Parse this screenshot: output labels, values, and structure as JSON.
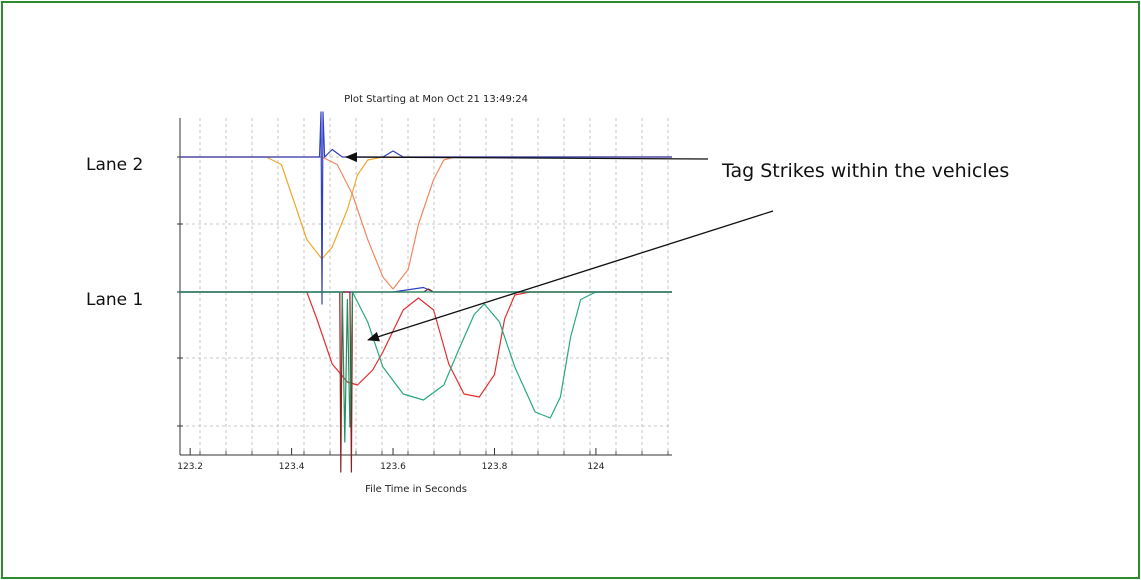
{
  "chart_data": {
    "type": "line",
    "title": "Plot Starting at Mon Oct 21 13:49:24",
    "xlabel": "File Time in Seconds",
    "ylabel": "",
    "x_tick_labels": [
      "123.2",
      "123.4",
      "123.6",
      "123.8",
      "124"
    ],
    "x_ticks": [
      123.2,
      123.4,
      123.6,
      123.8,
      124.0
    ],
    "xlim": [
      123.18,
      124.15
    ],
    "grid": true,
    "lanes": [
      {
        "label": "Lane 2",
        "baseline": 2
      },
      {
        "label": "Lane 1",
        "baseline": 1
      }
    ],
    "annotation": {
      "text": "Tag Strikes within the vehicles"
    },
    "series": [
      {
        "color": "#f0a830",
        "lane": 2,
        "points": [
          [
            123.18,
            0
          ],
          [
            123.35,
            0
          ],
          [
            123.38,
            -0.05
          ],
          [
            123.4,
            -0.25
          ],
          [
            123.43,
            -0.55
          ],
          [
            123.46,
            -0.68
          ],
          [
            123.48,
            -0.6
          ],
          [
            123.51,
            -0.35
          ],
          [
            123.53,
            -0.12
          ],
          [
            123.55,
            -0.02
          ],
          [
            123.58,
            0
          ],
          [
            124.15,
            0
          ]
        ]
      },
      {
        "color": "#f08860",
        "lane": 2,
        "points": [
          [
            123.18,
            0
          ],
          [
            123.46,
            0
          ],
          [
            123.49,
            -0.05
          ],
          [
            123.52,
            -0.25
          ],
          [
            123.55,
            -0.55
          ],
          [
            123.58,
            -0.8
          ],
          [
            123.6,
            -0.88
          ],
          [
            123.63,
            -0.75
          ],
          [
            123.65,
            -0.45
          ],
          [
            123.68,
            -0.15
          ],
          [
            123.7,
            -0.02
          ],
          [
            123.72,
            0
          ],
          [
            124.15,
            0
          ]
        ]
      },
      {
        "color": "#e03030",
        "lane": 1,
        "points": [
          [
            123.18,
            0
          ],
          [
            123.43,
            0
          ],
          [
            123.45,
            -0.18
          ],
          [
            123.48,
            -0.48
          ],
          [
            123.51,
            -0.6
          ],
          [
            123.53,
            -0.62
          ],
          [
            123.56,
            -0.52
          ],
          [
            123.58,
            -0.4
          ],
          [
            123.62,
            -0.12
          ],
          [
            123.65,
            -0.04
          ],
          [
            123.68,
            -0.12
          ],
          [
            123.71,
            -0.48
          ],
          [
            123.74,
            -0.68
          ],
          [
            123.77,
            -0.7
          ],
          [
            123.8,
            -0.55
          ],
          [
            123.82,
            -0.18
          ],
          [
            123.84,
            -0.02
          ],
          [
            123.87,
            0
          ],
          [
            124.15,
            0
          ]
        ]
      },
      {
        "color": "#2aa880",
        "lane": 1,
        "points": [
          [
            123.18,
            0
          ],
          [
            123.52,
            0
          ],
          [
            123.55,
            -0.2
          ],
          [
            123.58,
            -0.5
          ],
          [
            123.62,
            -0.68
          ],
          [
            123.66,
            -0.72
          ],
          [
            123.7,
            -0.62
          ],
          [
            123.73,
            -0.38
          ],
          [
            123.76,
            -0.15
          ],
          [
            123.78,
            -0.08
          ],
          [
            123.81,
            -0.2
          ],
          [
            123.84,
            -0.5
          ],
          [
            123.88,
            -0.8
          ],
          [
            123.91,
            -0.84
          ],
          [
            123.93,
            -0.7
          ],
          [
            123.95,
            -0.3
          ],
          [
            123.97,
            -0.05
          ],
          [
            124.0,
            0
          ],
          [
            124.15,
            0
          ]
        ]
      },
      {
        "color": "#3040c0",
        "lane": 2,
        "points": [
          [
            123.18,
            0
          ],
          [
            123.455,
            0
          ],
          [
            123.458,
            0.3
          ],
          [
            123.46,
            -0.98
          ],
          [
            123.462,
            0.3
          ],
          [
            123.465,
            0
          ],
          [
            123.48,
            0.05
          ],
          [
            123.5,
            0
          ],
          [
            123.58,
            0
          ],
          [
            123.6,
            0.04
          ],
          [
            123.62,
            0
          ],
          [
            124.15,
            0
          ]
        ]
      },
      {
        "color": "#3040c0",
        "lane": 1,
        "points": [
          [
            123.18,
            0
          ],
          [
            123.49,
            0
          ],
          [
            123.5,
            0
          ],
          [
            123.6,
            0
          ],
          [
            123.66,
            0.03
          ],
          [
            123.68,
            0
          ],
          [
            124.15,
            0
          ]
        ]
      },
      {
        "color": "#8a2020",
        "lane": 1,
        "points": [
          [
            123.18,
            0
          ],
          [
            123.495,
            0
          ],
          [
            123.497,
            -1.2
          ],
          [
            123.5,
            0
          ],
          [
            123.515,
            0
          ],
          [
            123.518,
            -1.2
          ],
          [
            123.52,
            0
          ],
          [
            123.66,
            0
          ],
          [
            123.67,
            0.02
          ],
          [
            123.68,
            0
          ],
          [
            124.15,
            0
          ]
        ]
      },
      {
        "color": "#209060",
        "lane": 1,
        "points": [
          [
            123.18,
            0
          ],
          [
            123.5,
            0
          ],
          [
            123.505,
            -1.0
          ],
          [
            123.51,
            -0.05
          ],
          [
            123.515,
            -0.9
          ],
          [
            123.52,
            0
          ],
          [
            124.15,
            0
          ]
        ]
      }
    ]
  }
}
